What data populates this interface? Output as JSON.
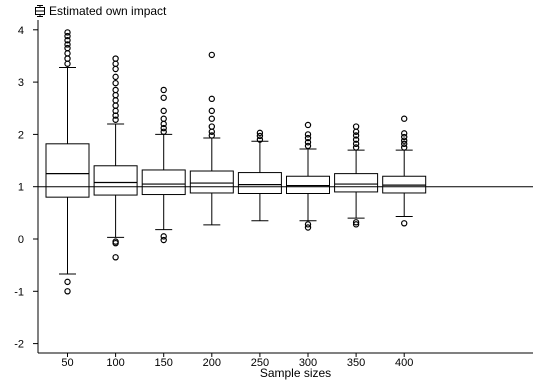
{
  "chart_data": {
    "type": "box",
    "legend": "Estimated own impact",
    "xlabel": "Sample sizes",
    "ylabel": "",
    "ylim": [
      -2.2,
      4.3
    ],
    "yticks": [
      -2,
      -1,
      0,
      1,
      2,
      3,
      4
    ],
    "reference_line": 1,
    "categories": [
      "50",
      "100",
      "150",
      "200",
      "250",
      "300",
      "350",
      "400"
    ],
    "boxes": [
      {
        "label": "50",
        "lower_whisker": -0.67,
        "q1": 0.8,
        "median": 1.25,
        "q3": 1.82,
        "upper_whisker": 3.28,
        "outliers": [
          -0.82,
          -1.0,
          3.35,
          3.45,
          3.55,
          3.65,
          3.72,
          3.8,
          3.88,
          3.95
        ]
      },
      {
        "label": "100",
        "lower_whisker": 0.03,
        "q1": 0.84,
        "median": 1.08,
        "q3": 1.4,
        "upper_whisker": 2.2,
        "outliers": [
          -0.05,
          -0.08,
          -0.35,
          2.28,
          2.36,
          2.45,
          2.55,
          2.65,
          2.75,
          2.85,
          2.98,
          3.1,
          3.25,
          3.35,
          3.45
        ]
      },
      {
        "label": "150",
        "lower_whisker": 0.18,
        "q1": 0.85,
        "median": 1.05,
        "q3": 1.32,
        "upper_whisker": 2.0,
        "outliers": [
          0.05,
          -0.02,
          2.05,
          2.12,
          2.2,
          2.3,
          2.45,
          2.7,
          2.85
        ]
      },
      {
        "label": "200",
        "lower_whisker": 0.27,
        "q1": 0.88,
        "median": 1.07,
        "q3": 1.3,
        "upper_whisker": 1.93,
        "outliers": [
          1.98,
          2.05,
          2.15,
          2.3,
          2.45,
          2.68,
          3.52
        ]
      },
      {
        "label": "250",
        "lower_whisker": 0.35,
        "q1": 0.87,
        "median": 1.04,
        "q3": 1.27,
        "upper_whisker": 1.87,
        "outliers": [
          1.9,
          1.97,
          2.03
        ]
      },
      {
        "label": "300",
        "lower_whisker": 0.35,
        "q1": 0.87,
        "median": 1.02,
        "q3": 1.2,
        "upper_whisker": 1.72,
        "outliers": [
          0.28,
          0.22,
          1.78,
          1.85,
          1.93,
          2.0,
          2.18
        ]
      },
      {
        "label": "350",
        "lower_whisker": 0.4,
        "q1": 0.9,
        "median": 1.05,
        "q3": 1.25,
        "upper_whisker": 1.7,
        "outliers": [
          0.32,
          0.28,
          1.75,
          1.82,
          1.9,
          1.98,
          2.05,
          2.15
        ]
      },
      {
        "label": "400",
        "lower_whisker": 0.43,
        "q1": 0.88,
        "median": 1.03,
        "q3": 1.2,
        "upper_whisker": 1.7,
        "outliers": [
          0.3,
          1.75,
          1.82,
          1.88,
          1.95,
          2.02,
          2.3
        ]
      }
    ]
  }
}
